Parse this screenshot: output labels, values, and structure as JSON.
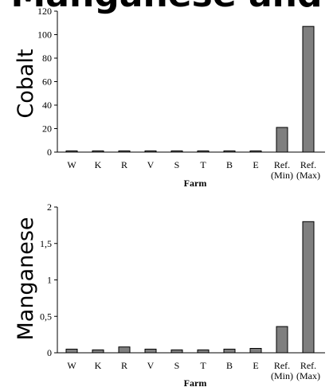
{
  "page_title": "Manganese and",
  "chart_data": [
    {
      "type": "bar",
      "ylabel": "Cobalt",
      "xlabel": "Farm",
      "categories": [
        "W",
        "K",
        "R",
        "V",
        "S",
        "T",
        "B",
        "E",
        "Ref.\n(Min)",
        "Ref.\n(Max)"
      ],
      "values": [
        0.2,
        0.2,
        0.3,
        0.5,
        0.2,
        0.4,
        0.2,
        0.5,
        21,
        107
      ],
      "yticks": [
        "0",
        "20",
        "40",
        "60",
        "80",
        "100",
        "120"
      ],
      "ylim": [
        0,
        120
      ]
    },
    {
      "type": "bar",
      "ylabel": "Manganese",
      "xlabel": "Farm",
      "categories": [
        "W",
        "K",
        "R",
        "V",
        "S",
        "T",
        "B",
        "E",
        "Ref.\n(Min)",
        "Ref.\n(Max)"
      ],
      "values": [
        0.05,
        0.04,
        0.08,
        0.05,
        0.04,
        0.04,
        0.05,
        0.06,
        0.36,
        1.8
      ],
      "yticks": [
        "0",
        "0,5",
        "1",
        "1,5",
        "2"
      ],
      "ylim": [
        0,
        2
      ]
    }
  ]
}
